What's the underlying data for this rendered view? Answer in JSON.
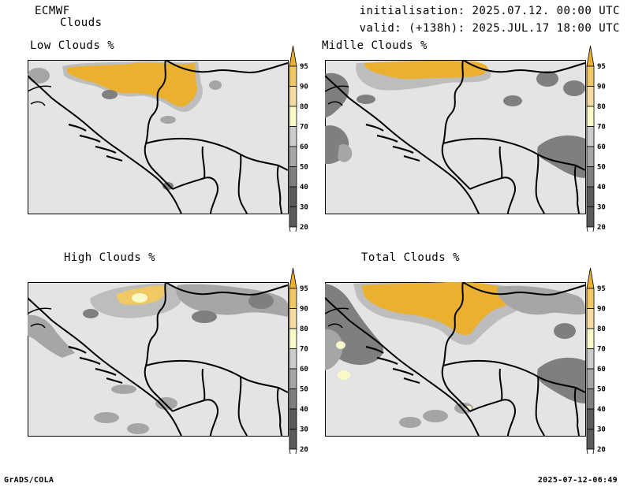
{
  "header": {
    "model": "ECMWF",
    "product": "Clouds",
    "init": "initialisation: 2025.07.12. 00:00 UTC",
    "valid": "valid: (+138h): 2025.JUL.17 18:00 UTC"
  },
  "panels": [
    {
      "id": "low",
      "title": "Low Clouds %"
    },
    {
      "id": "mid",
      "title": "Midlle Clouds %"
    },
    {
      "id": "high",
      "title": "High Clouds %"
    },
    {
      "id": "total",
      "title": "Total Clouds %"
    }
  ],
  "colorbar": {
    "levels": [
      "20",
      "30",
      "40",
      "50",
      "60",
      "70",
      "80",
      "90",
      "95"
    ],
    "colors": {
      "lt20": "#ffffff",
      "20-30": "#5a5a5a",
      "30-40": "#5a5a5a",
      "40-50": "#7f7f7f",
      "50-60": "#a6a6a6",
      "60-70": "#cccccc",
      "70-80": "#fafac8",
      "80-90": "#f5dca0",
      "90-95": "#f0c864",
      "gt95": "#ebb030"
    }
  },
  "footer": {
    "left": "GrADS/COLA",
    "right": "2025-07-12-06:49"
  }
}
